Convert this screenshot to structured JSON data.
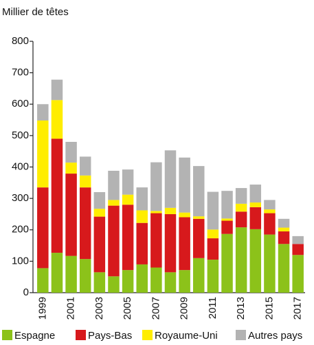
{
  "chart_data": {
    "type": "stacked_bar",
    "y_label": "Millier de têtes",
    "categories": [
      "1999",
      null,
      "2001",
      null,
      "2003",
      null,
      "2005",
      null,
      "2007",
      null,
      "2009",
      null,
      "2011",
      null,
      "2013",
      null,
      "2015",
      null,
      "2017"
    ],
    "series": [
      {
        "name": "Espagne",
        "color": "#8cc21a",
        "values": [
          78,
          127,
          117,
          107,
          65,
          52,
          72,
          90,
          80,
          65,
          72,
          110,
          105,
          187,
          208,
          202,
          185,
          155,
          120
        ]
      },
      {
        "name": "Pays-Bas",
        "color": "#d7191c",
        "values": [
          257,
          363,
          262,
          228,
          177,
          225,
          208,
          132,
          173,
          185,
          168,
          125,
          68,
          42,
          50,
          70,
          68,
          40,
          35
        ]
      },
      {
        "name": "Royaume-Uni",
        "color": "#ffed00",
        "values": [
          213,
          123,
          35,
          38,
          25,
          18,
          32,
          40,
          7,
          20,
          15,
          8,
          28,
          7,
          25,
          15,
          12,
          12,
          0
        ]
      },
      {
        "name": "Autres pays",
        "color": "#b3b3b3",
        "values": [
          52,
          65,
          66,
          60,
          53,
          93,
          80,
          73,
          155,
          183,
          175,
          160,
          120,
          88,
          50,
          57,
          30,
          28,
          25
        ]
      }
    ],
    "ylim": [
      0,
      800
    ],
    "yticks": [
      0,
      100,
      200,
      300,
      400,
      500,
      600,
      700,
      800
    ],
    "grid": false
  }
}
